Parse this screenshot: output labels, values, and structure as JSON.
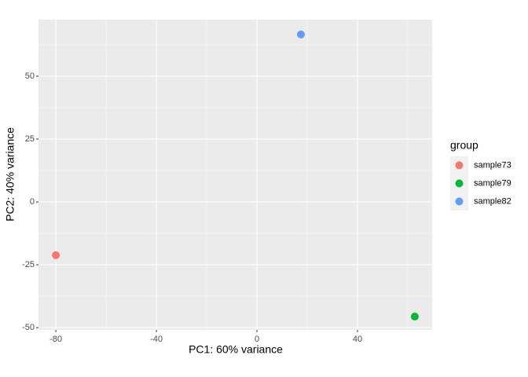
{
  "chart_data": {
    "type": "scatter",
    "x_label": "PC1: 60% variance",
    "y_label": "PC2: 40% variance",
    "legend_title": "group",
    "legend_position": "right",
    "series": [
      {
        "name": "sample73",
        "color": "#F8766D",
        "x": [
          -80
        ],
        "values": [
          -21.2
        ]
      },
      {
        "name": "sample79",
        "color": "#00BA38",
        "x": [
          62.8
        ],
        "values": [
          -45.6
        ]
      },
      {
        "name": "sample82",
        "color": "#619CFF",
        "x": [
          17.5
        ],
        "values": [
          66.6
        ]
      }
    ],
    "xlim": [
      -86.9,
      69.7
    ],
    "xticks": [
      -80,
      -40,
      0,
      40
    ],
    "ylim": [
      -50.9,
      72.5
    ],
    "yticks": [
      -50,
      -25,
      0,
      25,
      50
    ],
    "grid": true
  }
}
